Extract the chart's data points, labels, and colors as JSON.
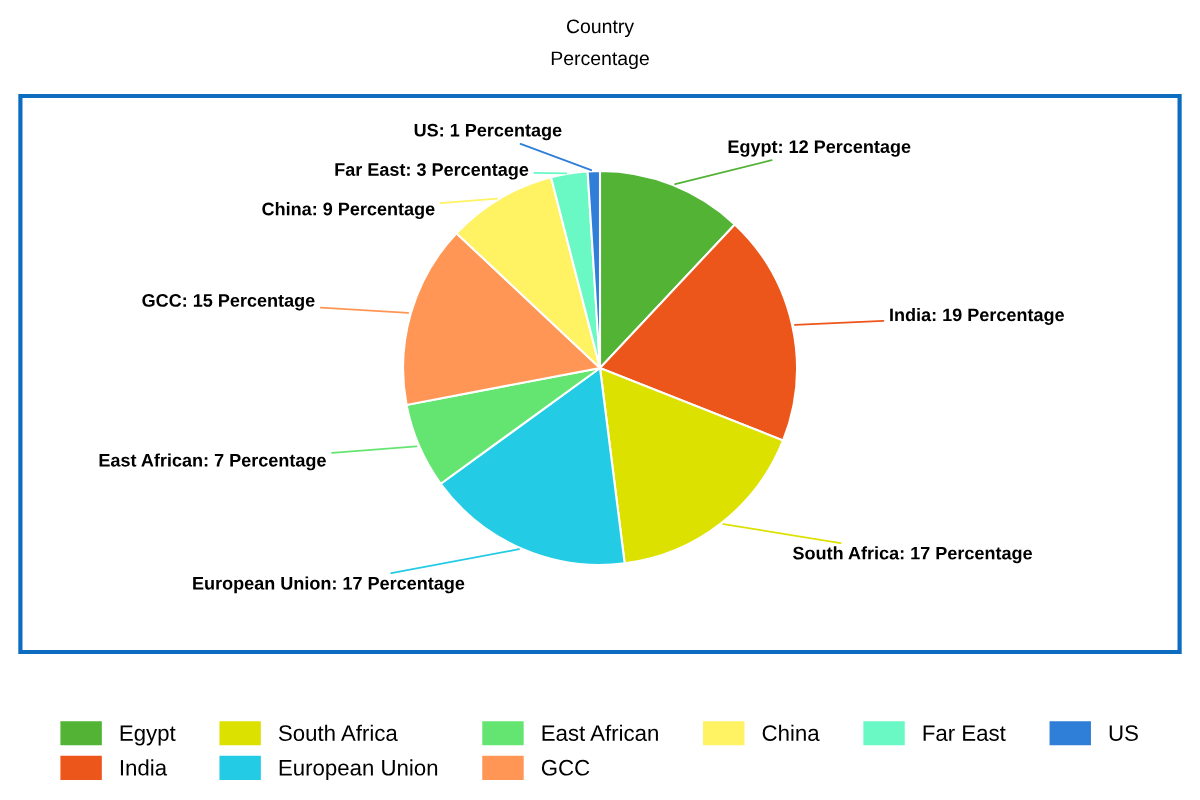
{
  "chart_data": {
    "type": "pie",
    "title": "Country",
    "subtitle": "Percentage",
    "categories": [
      "Egypt",
      "India",
      "South Africa",
      "European Union",
      "East African",
      "GCC",
      "China",
      "Far East",
      "US"
    ],
    "values": [
      12,
      19,
      17,
      17,
      7,
      15,
      9,
      3,
      1
    ],
    "value_labels": [
      "Egypt: 12 Percentage",
      "India: 19 Percentage",
      "South Africa: 17 Percentage",
      "European Union: 17 Percentage",
      "East African: 7 Percentage",
      "GCC: 15 Percentage",
      "China: 9 Percentage",
      "Far East: 3 Percentage",
      "US: 1 Percentage"
    ],
    "colors": [
      "#52b335",
      "#ed561b",
      "#dde100",
      "#24cbe5",
      "#64e572",
      "#ff9655",
      "#fff263",
      "#6af9c4",
      "#2f7ed8"
    ],
    "legend": "bottom"
  }
}
